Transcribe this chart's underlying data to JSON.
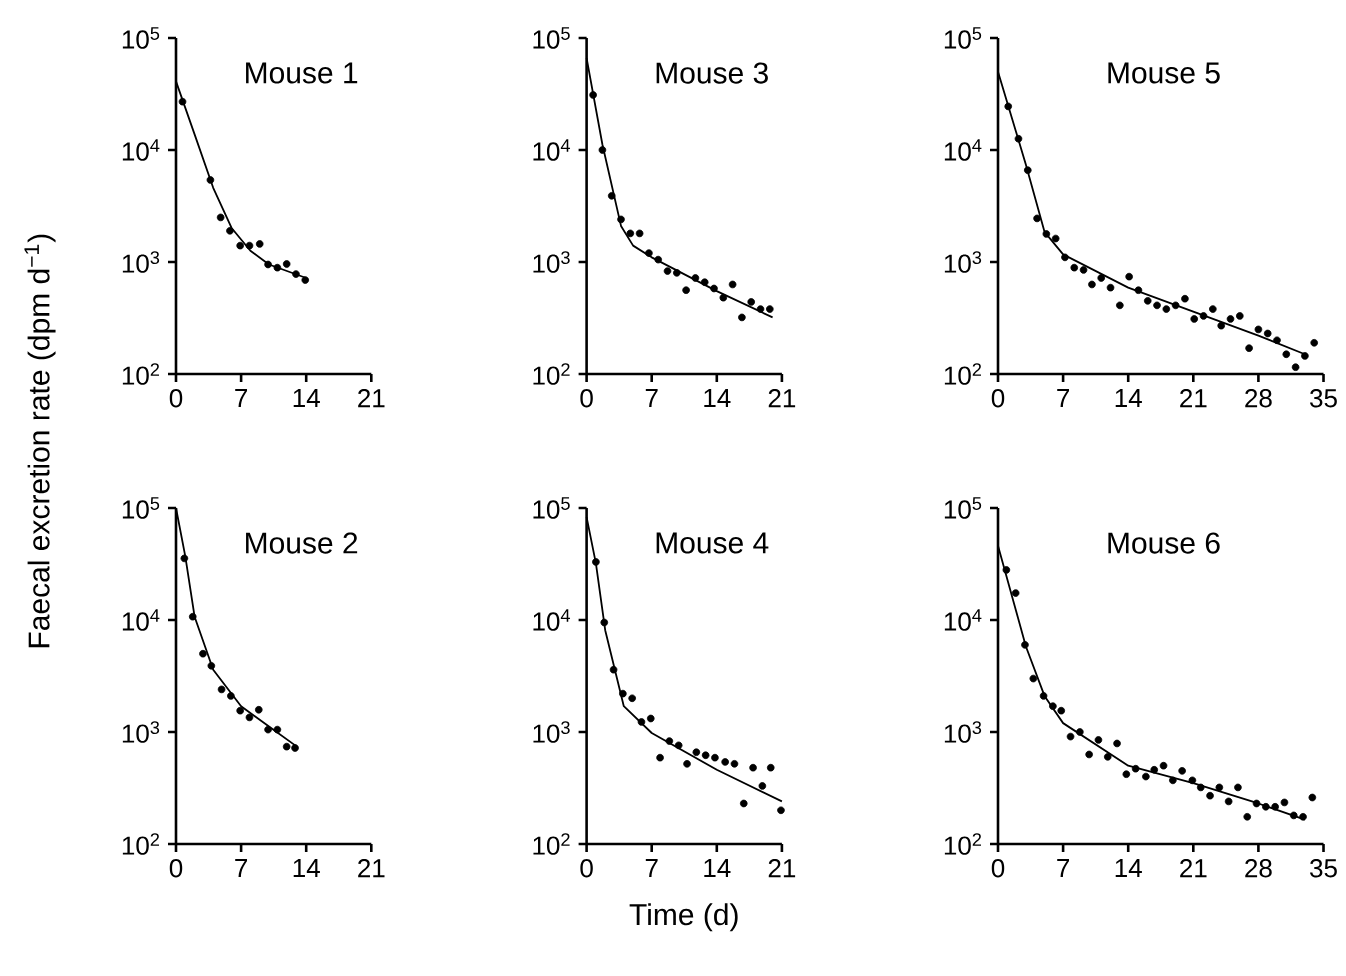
{
  "chart_data": [
    {
      "type": "scatter",
      "title": "Mouse 1",
      "ylabel": "Faecal excretion rate (dpm d$^{−1}$)",
      "log": "y",
      "xlim": [
        0,
        21
      ],
      "xticks": [
        0,
        7,
        14,
        21
      ],
      "ylim": [
        100,
        100000
      ],
      "yticks": [
        {
          "value": 100,
          "label": "10$^{2}$"
        },
        {
          "value": 1000,
          "label": "10$^{3}$"
        },
        {
          "value": 10000,
          "label": "10$^{4}$"
        },
        {
          "value": 100000,
          "label": "10$^{5}$"
        }
      ],
      "series": [
        {
          "marker": "circle",
          "color": "#000000",
          "x": [
            0.7,
            3.7,
            4.8,
            5.8,
            6.9,
            7.9,
            9.0,
            9.9,
            10.9,
            11.9,
            12.9,
            13.9
          ],
          "values": [
            27000,
            5400,
            2500,
            1900,
            1400,
            1400,
            1450,
            950,
            890,
            960,
            780,
            690
          ]
        },
        {
          "type": "line",
          "marker": "none",
          "color": "#000000",
          "x": [
            0,
            2,
            4,
            6,
            8,
            10,
            14
          ],
          "values": [
            41000,
            13800,
            4600,
            2000,
            1260,
            950,
            720
          ]
        }
      ]
    },
    {
      "type": "scatter",
      "title": "Mouse 3",
      "log": "y",
      "xlim": [
        0,
        21
      ],
      "xticks": [
        0,
        7,
        14,
        21
      ],
      "ylim": [
        100,
        100000
      ],
      "yticks": [
        {
          "value": 100,
          "label": "10$^{2}$"
        },
        {
          "value": 1000,
          "label": "10$^{3}$"
        },
        {
          "value": 10000,
          "label": "10$^{4}$"
        },
        {
          "value": 100000,
          "label": "10$^{5}$"
        }
      ],
      "series": [
        {
          "marker": "circle",
          "color": "#000000",
          "x": [
            0.7,
            1.7,
            2.7,
            3.7,
            4.7,
            5.7,
            6.7,
            7.7,
            8.7,
            9.7,
            10.7,
            11.7,
            12.7,
            13.7,
            14.7,
            15.7,
            16.7,
            17.7,
            18.7,
            19.7
          ],
          "values": [
            31000,
            10000,
            3900,
            2400,
            1800,
            1800,
            1200,
            1050,
            830,
            800,
            560,
            720,
            660,
            580,
            480,
            630,
            320,
            440,
            380,
            380
          ]
        },
        {
          "type": "line",
          "marker": "none",
          "color": "#000000",
          "x": [
            0,
            1.7,
            3.7,
            5,
            7,
            14,
            20
          ],
          "values": [
            66000,
            11200,
            2100,
            1400,
            1100,
            550,
            320
          ]
        }
      ]
    },
    {
      "type": "scatter",
      "title": "Mouse 5",
      "log": "y",
      "xlim": [
        0,
        35
      ],
      "xticks": [
        0,
        7,
        14,
        21,
        28,
        35
      ],
      "ylim": [
        100,
        100000
      ],
      "yticks": [
        {
          "value": 100,
          "label": "10$^{2}$"
        },
        {
          "value": 1000,
          "label": "10$^{3}$"
        },
        {
          "value": 10000,
          "label": "10$^{4}$"
        },
        {
          "value": 100000,
          "label": "10$^{5}$"
        }
      ],
      "series": [
        {
          "marker": "circle",
          "color": "#000000",
          "x": [
            1.1,
            2.2,
            3.2,
            4.2,
            5.2,
            6.2,
            7.2,
            8.2,
            9.2,
            10.1,
            11.1,
            12.1,
            13.1,
            14.1,
            15.1,
            16.1,
            17.1,
            18.1,
            19.1,
            20.1,
            21.1,
            22.1,
            23.1,
            24,
            25,
            26,
            27,
            28,
            29,
            30,
            31,
            32,
            33,
            34
          ],
          "values": [
            24500,
            12600,
            6600,
            2450,
            1780,
            1620,
            1100,
            890,
            850,
            630,
            720,
            590,
            410,
            740,
            560,
            450,
            410,
            380,
            410,
            470,
            310,
            330,
            380,
            270,
            310,
            330,
            170,
            250,
            230,
            200,
            150,
            115,
            145,
            190
          ]
        },
        {
          "type": "line",
          "marker": "none",
          "color": "#000000",
          "x": [
            0,
            3,
            5,
            7,
            14,
            21,
            28,
            33
          ],
          "values": [
            50000,
            7400,
            1860,
            1170,
            590,
            360,
            220,
            150
          ]
        }
      ]
    },
    {
      "type": "scatter",
      "title": "Mouse 2",
      "log": "y",
      "xlim": [
        0,
        21
      ],
      "xticks": [
        0,
        7,
        14,
        21
      ],
      "ylim": [
        100,
        100000
      ],
      "yticks": [
        {
          "value": 100,
          "label": "10$^{2}$"
        },
        {
          "value": 1000,
          "label": "10$^{3}$"
        },
        {
          "value": 10000,
          "label": "10$^{4}$"
        },
        {
          "value": 100000,
          "label": "10$^{5}$"
        }
      ],
      "series": [
        {
          "marker": "circle",
          "color": "#000000",
          "x": [
            0.9,
            1.8,
            2.9,
            3.8,
            4.9,
            5.9,
            6.9,
            7.9,
            8.9,
            9.9,
            10.9,
            11.9,
            12.8
          ],
          "values": [
            35500,
            10700,
            5000,
            3900,
            2400,
            2100,
            1550,
            1350,
            1580,
            1050,
            1050,
            740,
            720
          ]
        },
        {
          "type": "line",
          "marker": "none",
          "color": "#000000",
          "x": [
            0,
            1,
            2,
            4,
            7,
            10,
            13
          ],
          "values": [
            100000,
            37000,
            10700,
            3600,
            1700,
            1120,
            740
          ]
        }
      ]
    },
    {
      "type": "scatter",
      "title": "Mouse 4",
      "xlabel": "Time (d)",
      "log": "y",
      "xlim": [
        0,
        21
      ],
      "xticks": [
        0,
        7,
        14,
        21
      ],
      "ylim": [
        100,
        100000
      ],
      "yticks": [
        {
          "value": 100,
          "label": "10$^{2}$"
        },
        {
          "value": 1000,
          "label": "10$^{3}$"
        },
        {
          "value": 10000,
          "label": "10$^{4}$"
        },
        {
          "value": 100000,
          "label": "10$^{5}$"
        }
      ],
      "series": [
        {
          "marker": "circle",
          "color": "#000000",
          "x": [
            1.0,
            1.9,
            2.9,
            3.9,
            4.9,
            5.9,
            6.9,
            7.9,
            8.9,
            9.9,
            10.8,
            11.8,
            12.8,
            13.8,
            14.9,
            15.9,
            16.9,
            17.9,
            18.9,
            19.8,
            20.9
          ],
          "values": [
            33000,
            9500,
            3600,
            2200,
            2000,
            1230,
            1320,
            590,
            830,
            760,
            520,
            660,
            620,
            590,
            540,
            520,
            230,
            480,
            330,
            480,
            200
          ]
        },
        {
          "type": "line",
          "marker": "none",
          "color": "#000000",
          "x": [
            0,
            1,
            2,
            4,
            7,
            14,
            21
          ],
          "values": [
            83000,
            32000,
            8100,
            1700,
            980,
            460,
            240
          ]
        }
      ]
    },
    {
      "type": "scatter",
      "title": "Mouse 6",
      "log": "y",
      "xlim": [
        0,
        35
      ],
      "xticks": [
        0,
        7,
        14,
        21,
        28,
        35
      ],
      "ylim": [
        100,
        100000
      ],
      "yticks": [
        {
          "value": 100,
          "label": "10$^{2}$"
        },
        {
          "value": 1000,
          "label": "10$^{3}$"
        },
        {
          "value": 10000,
          "label": "10$^{4}$"
        },
        {
          "value": 100000,
          "label": "10$^{5}$"
        }
      ],
      "series": [
        {
          "marker": "circle",
          "color": "#000000",
          "x": [
            0.9,
            1.9,
            2.9,
            3.8,
            4.9,
            5.9,
            6.8,
            7.8,
            8.8,
            9.8,
            10.8,
            11.8,
            12.8,
            13.8,
            14.8,
            15.9,
            16.8,
            17.8,
            18.8,
            19.8,
            20.9,
            21.8,
            22.8,
            23.8,
            24.8,
            25.8,
            26.8,
            27.8,
            28.8,
            29.8,
            30.8,
            31.8,
            32.8,
            33.8
          ],
          "values": [
            28000,
            17400,
            6000,
            3000,
            2100,
            1700,
            1550,
            910,
            1000,
            630,
            850,
            600,
            790,
            420,
            470,
            400,
            460,
            500,
            370,
            450,
            370,
            320,
            270,
            320,
            240,
            320,
            175,
            230,
            215,
            215,
            235,
            180,
            175,
            260
          ]
        },
        {
          "type": "line",
          "marker": "none",
          "color": "#000000",
          "x": [
            0,
            3,
            5,
            7,
            14,
            21,
            28,
            33
          ],
          "values": [
            46000,
            5800,
            2100,
            1200,
            500,
            350,
            230,
            165
          ]
        }
      ]
    }
  ]
}
